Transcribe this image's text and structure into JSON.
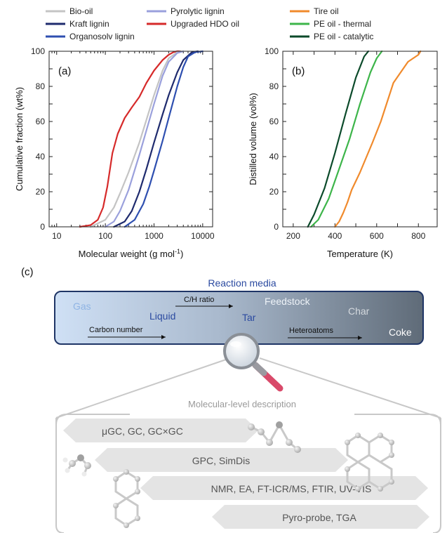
{
  "legend": {
    "columns": [
      [
        {
          "label": "Bio-oil",
          "color": "#c4c4c4"
        },
        {
          "label": "Kraft lignin",
          "color": "#1f2b6e"
        },
        {
          "label": "Organosolv lignin",
          "color": "#2e4fb0"
        }
      ],
      [
        {
          "label": "Pyrolytic lignin",
          "color": "#9aa0dc"
        },
        {
          "label": "Upgraded HDO oil",
          "color": "#d62a2a"
        }
      ],
      [
        {
          "label": "Tire oil",
          "color": "#f08a2c"
        },
        {
          "label": "PE oil - thermal",
          "color": "#3db54a"
        },
        {
          "label": "PE oil - catalytic",
          "color": "#0b4a2a"
        }
      ]
    ]
  },
  "chart_data": [
    {
      "type": "line",
      "panel_label": "(a)",
      "xlabel": "Molecular weight (g mol",
      "xlabel_sup": "-1",
      "xlabel_tail": ")",
      "ylabel": "Cumulative fraction (wt%)",
      "xscale": "log",
      "xlim": [
        7,
        16000
      ],
      "ylim": [
        0,
        100
      ],
      "xticks": [
        10,
        100,
        1000,
        10000
      ],
      "xtick_labels": [
        "10",
        "100",
        "1000",
        "10000"
      ],
      "yticks": [
        0,
        20,
        40,
        60,
        80,
        100
      ],
      "ytick_labels": [
        "0",
        "20",
        "40",
        "60",
        "80",
        "100"
      ],
      "series": [
        {
          "name": "Upgraded HDO oil",
          "color": "#d62a2a",
          "x": [
            30,
            50,
            70,
            90,
            110,
            140,
            180,
            250,
            350,
            500,
            700,
            1000,
            1500,
            2000,
            2500,
            3000,
            3500
          ],
          "y": [
            0,
            1,
            4,
            11,
            23,
            42,
            53,
            62,
            68,
            74,
            82,
            89,
            95,
            98,
            99.5,
            100,
            100
          ]
        },
        {
          "name": "Bio-oil",
          "color": "#c4c4c4",
          "x": [
            50,
            100,
            150,
            200,
            300,
            500,
            700,
            1000,
            1500,
            2000,
            3000,
            3500
          ],
          "y": [
            0,
            4,
            11,
            19,
            31,
            48,
            61,
            75,
            89,
            96,
            99.5,
            100
          ]
        },
        {
          "name": "Pyrolytic lignin",
          "color": "#9aa0dc",
          "x": [
            100,
            150,
            200,
            300,
            500,
            700,
            1000,
            1500,
            2000,
            3000,
            4000
          ],
          "y": [
            0,
            3,
            9,
            21,
            41,
            55,
            70,
            86,
            94,
            99,
            100
          ]
        },
        {
          "name": "Kraft lignin",
          "color": "#1f2b6e",
          "x": [
            150,
            250,
            350,
            500,
            700,
            1000,
            1500,
            2000,
            3000,
            4000,
            6000,
            8000
          ],
          "y": [
            0,
            3,
            9,
            20,
            33,
            48,
            64,
            75,
            88,
            95,
            99.5,
            100
          ]
        },
        {
          "name": "Organosolv lignin",
          "color": "#2e4fb0",
          "x": [
            250,
            400,
            600,
            800,
            1000,
            1500,
            2000,
            3000,
            4000,
            5000,
            7000,
            10000
          ],
          "y": [
            0,
            4,
            13,
            23,
            32,
            49,
            62,
            80,
            91,
            97,
            99.5,
            100
          ]
        }
      ]
    },
    {
      "type": "line",
      "panel_label": "(b)",
      "xlabel": "Temperature (K)",
      "ylabel": "Distilled volume (vol%)",
      "xlim": [
        150,
        890
      ],
      "ylim": [
        0,
        100
      ],
      "xticks": [
        200,
        400,
        600,
        800
      ],
      "xtick_labels": [
        "200",
        "400",
        "600",
        "800"
      ],
      "yticks": [
        0,
        20,
        40,
        60,
        80,
        100
      ],
      "ytick_labels": [
        "0",
        "20",
        "40",
        "60",
        "80",
        "100"
      ],
      "series": [
        {
          "name": "PE oil - catalytic",
          "color": "#0b4a2a",
          "x": [
            270,
            300,
            350,
            400,
            450,
            500,
            540,
            560
          ],
          "y": [
            0,
            7,
            22,
            42,
            64,
            85,
            97,
            100
          ]
        },
        {
          "name": "PE oil - thermal",
          "color": "#3db54a",
          "x": [
            285,
            320,
            370,
            420,
            470,
            520,
            570,
            600,
            625
          ],
          "y": [
            0,
            4,
            16,
            33,
            50,
            70,
            88,
            96,
            100
          ]
        },
        {
          "name": "Tire oil",
          "color": "#f08a2c",
          "x": [
            400,
            420,
            440,
            460,
            480,
            520,
            580,
            620,
            680,
            750,
            800,
            810
          ],
          "y": [
            0,
            3,
            8,
            14,
            21,
            31,
            48,
            60,
            82,
            94,
            98,
            100
          ]
        }
      ]
    }
  ],
  "diagram": {
    "panel_label": "(c)",
    "title": "Reaction media",
    "bar_terms": {
      "gas": "Gas",
      "liquid": "Liquid",
      "tar": "Tar",
      "feedstock": "Feedstock",
      "char": "Char",
      "coke": "Coke"
    },
    "arrows": {
      "ch_ratio": "C/H ratio",
      "carbon_number": "Carbon number",
      "heteroatoms": "Heteroatoms"
    },
    "subtitle": "Molecular-level description",
    "techniques": [
      "μGC, GC, GC×GC",
      "GPC, SimDis",
      "NMR, EA, FT-ICR/MS, FTIR, UV-VIS",
      "Pyro-probe, TGA"
    ],
    "colors": {
      "title": "#2b4aa0",
      "bar_start": "#cfe0f5",
      "bar_end": "#5f6b78",
      "banner": "#e4e4e4"
    }
  }
}
